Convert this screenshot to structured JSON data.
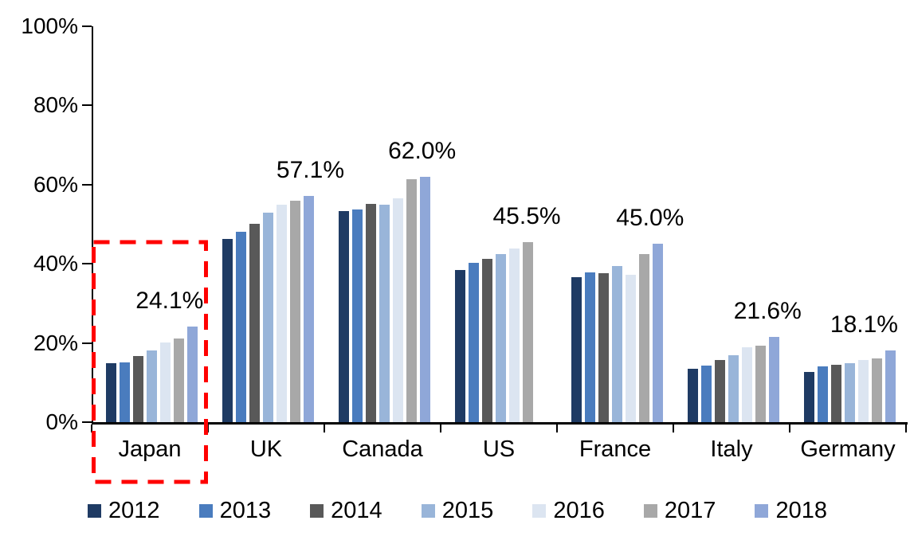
{
  "chart_data": {
    "type": "bar",
    "title": "",
    "xlabel": "",
    "ylabel": "",
    "ylim": [
      0,
      100
    ],
    "grid": false,
    "legend_position": "bottom",
    "categories": [
      "Japan",
      "UK",
      "Canada",
      "US",
      "France",
      "Italy",
      "Germany"
    ],
    "series": [
      {
        "name": "2012",
        "color": "#1F3B64",
        "values": [
          14.9,
          46.3,
          53.3,
          38.4,
          36.6,
          13.4,
          12.6
        ]
      },
      {
        "name": "2013",
        "color": "#4A7CBE",
        "values": [
          15.0,
          48.0,
          53.8,
          40.3,
          37.8,
          14.2,
          14.0
        ]
      },
      {
        "name": "2014",
        "color": "#595959",
        "values": [
          16.8,
          50.1,
          55.2,
          41.3,
          37.7,
          15.6,
          14.5
        ]
      },
      {
        "name": "2015",
        "color": "#99B5D9",
        "values": [
          18.2,
          53.0,
          54.9,
          42.4,
          39.4,
          17.0,
          14.9
        ]
      },
      {
        "name": "2016",
        "color": "#DCE5F1",
        "values": [
          20.1,
          55.0,
          56.5,
          43.8,
          37.3,
          19.0,
          15.6
        ]
      },
      {
        "name": "2017",
        "color": "#A8A8A8",
        "values": [
          21.2,
          56.0,
          61.4,
          45.5,
          42.5,
          19.3,
          16.1
        ]
      },
      {
        "name": "2018",
        "color": "#8FA7D8",
        "values": [
          24.1,
          57.1,
          62.0,
          null,
          45.0,
          21.6,
          18.1
        ]
      }
    ],
    "peak_labels": [
      "24.1%",
      "57.1%",
      "62.0%",
      "45.5%",
      "45.0%",
      "21.6%",
      "18.1%"
    ],
    "peak_values": [
      24.1,
      57.1,
      62.0,
      45.5,
      45.0,
      21.6,
      18.1
    ],
    "label_offsets": [
      0.67,
      0.88,
      0.84,
      0.74,
      0.8,
      0.81,
      0.64
    ],
    "yticks": [
      {
        "label": "100%",
        "value": 100
      },
      {
        "label": "80%",
        "value": 80
      },
      {
        "label": "60%",
        "value": 60
      },
      {
        "label": "40%",
        "value": 40
      },
      {
        "label": "20%",
        "value": 20
      },
      {
        "label": "0%",
        "value": 0
      }
    ],
    "highlight": {
      "category": "Japan",
      "color": "#FF0000",
      "style": "dashed-rectangle"
    }
  }
}
